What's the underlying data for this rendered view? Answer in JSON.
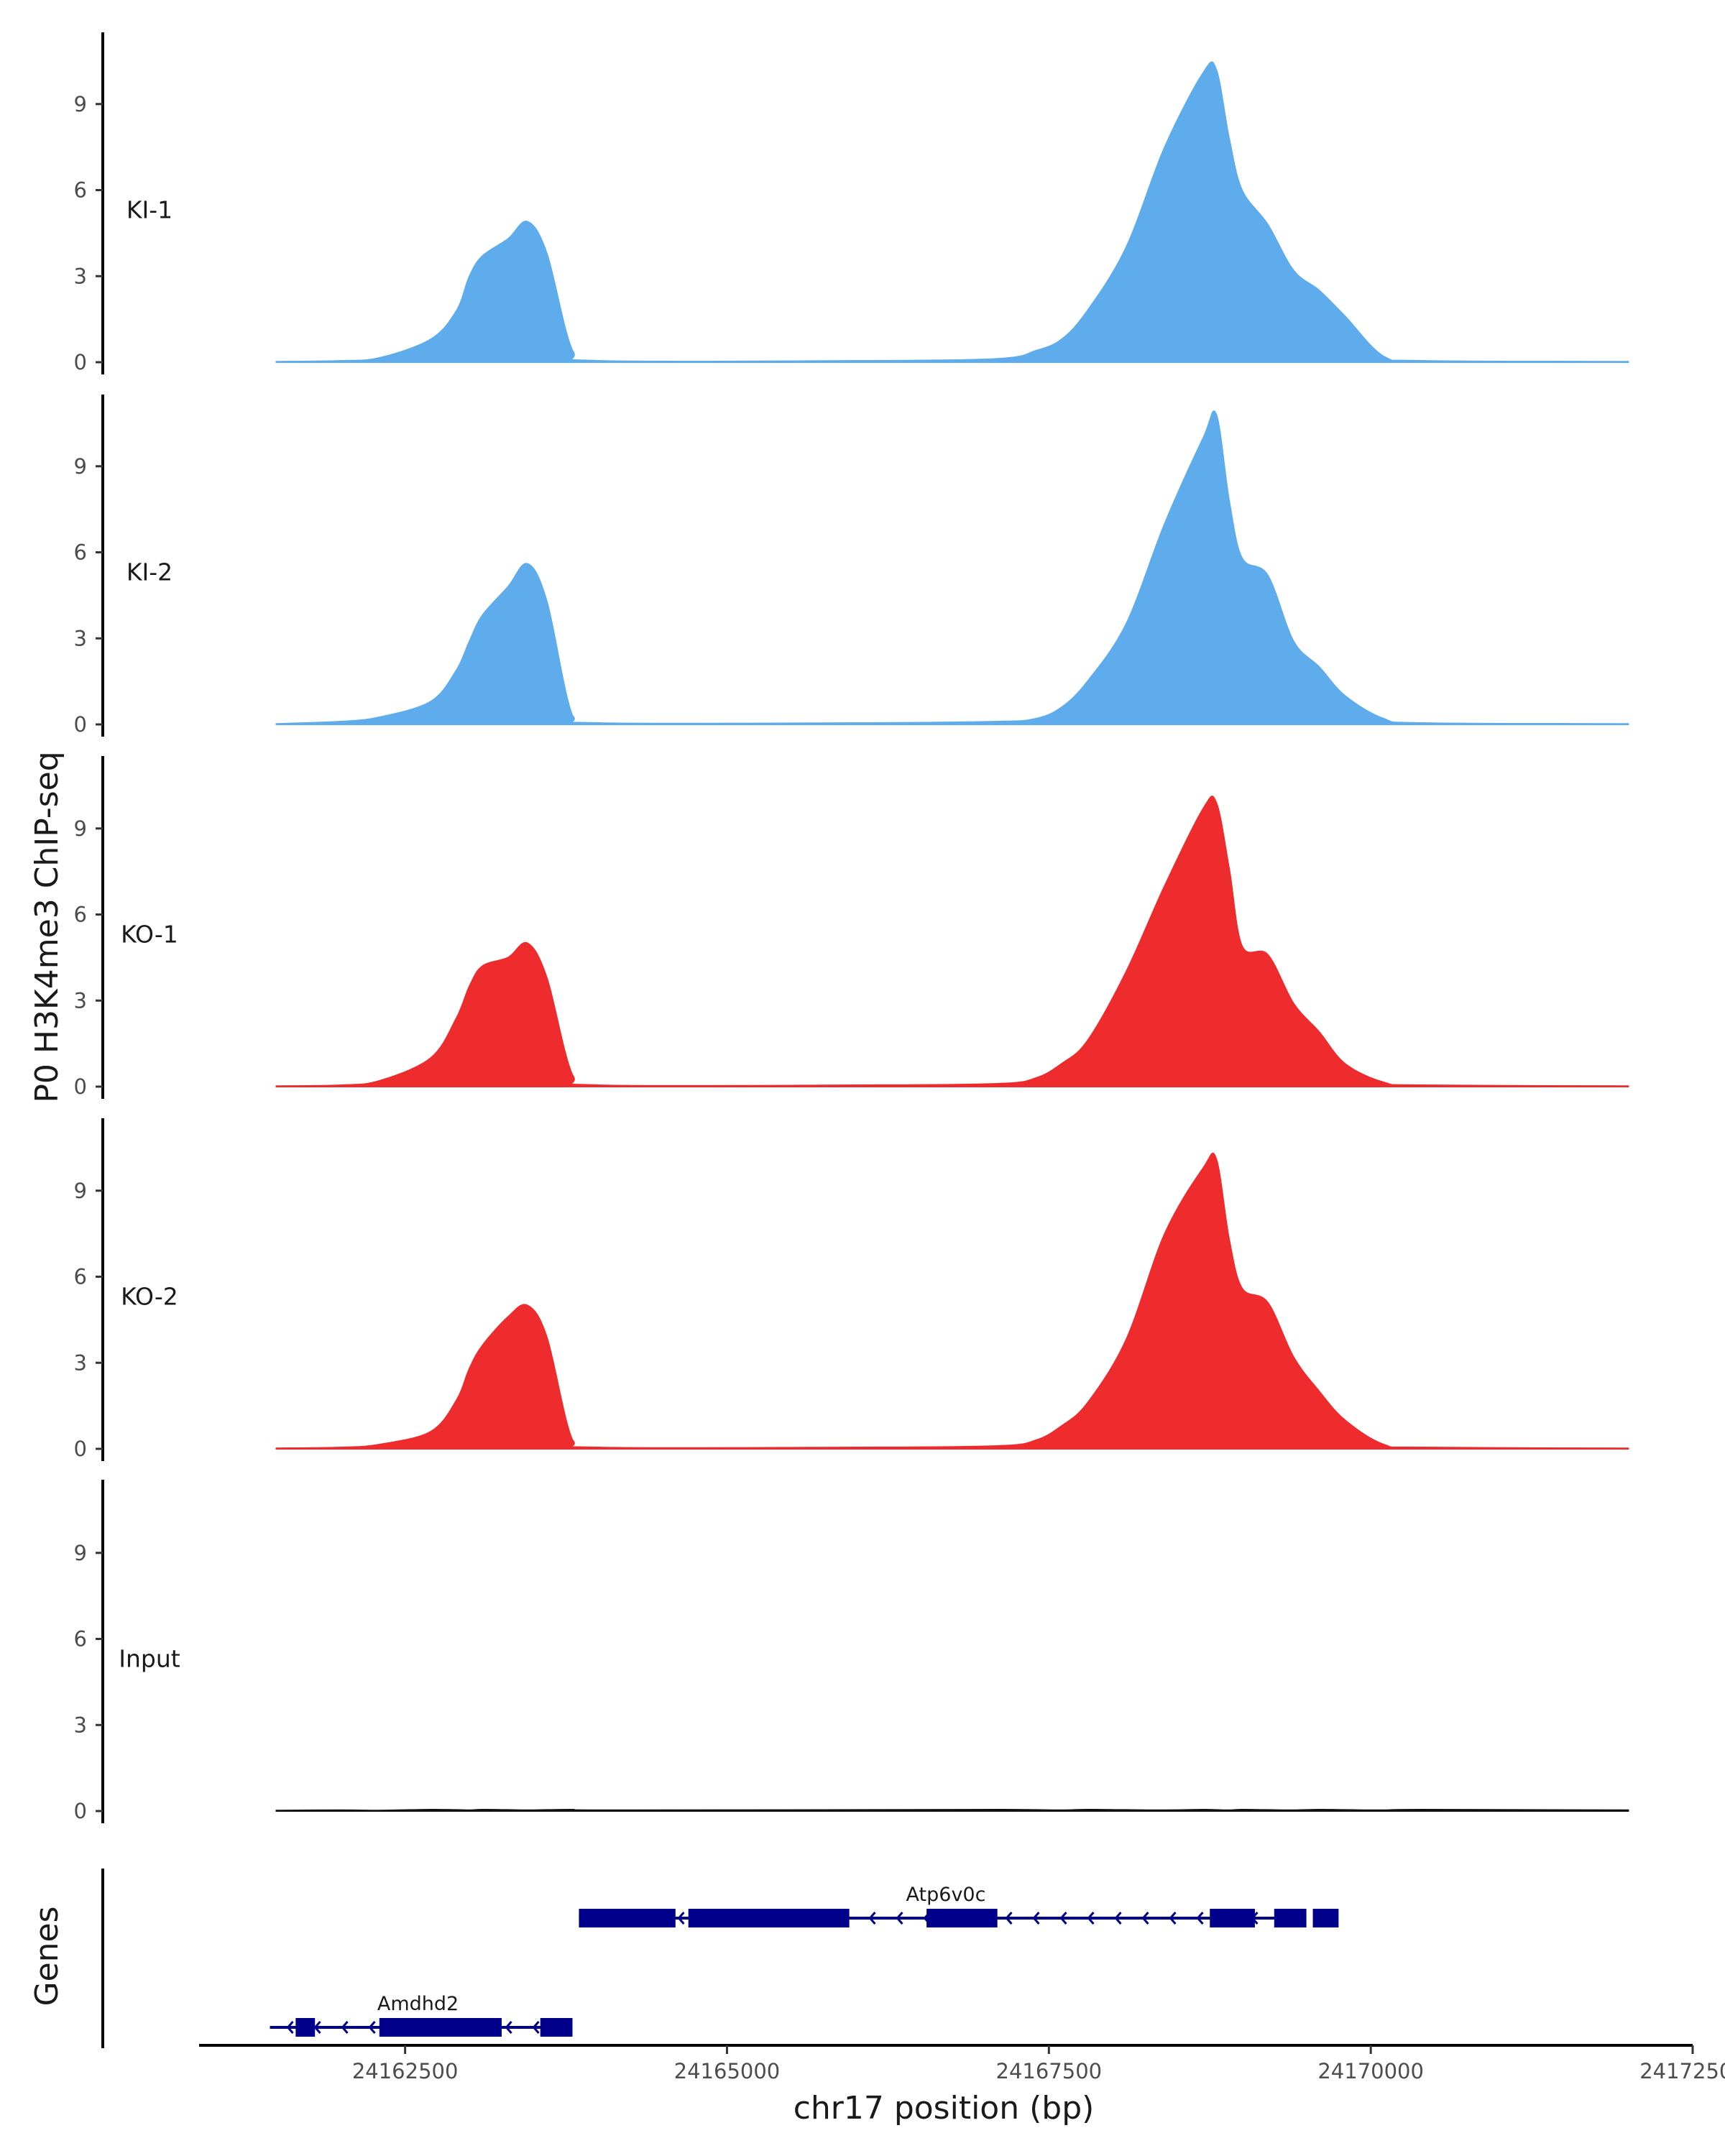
{
  "chart_data": {
    "type": "area",
    "ylabel": "P0 H3K4me3 ChIP-seq",
    "xlabel": "chr17 position (bp)",
    "genes_label": "Genes",
    "xlim": [
      24160900,
      24172500
    ],
    "xticks": [
      24162500,
      24165000,
      24167500,
      24170000,
      24172500
    ],
    "xtick_labels": [
      "24162500",
      "24165000",
      "24167500",
      "24170000",
      "24172500"
    ],
    "ylim": [
      0,
      11.5
    ],
    "yticks": [
      0,
      3,
      6,
      9
    ],
    "ytick_labels": [
      "0",
      "3",
      "6",
      "9"
    ],
    "x": [
      24161500,
      24162000,
      24162300,
      24162700,
      24162900,
      24163000,
      24163100,
      24163300,
      24163450,
      24163600,
      24163800,
      24164000,
      24166000,
      24167100,
      24167400,
      24167600,
      24167800,
      24168100,
      24168400,
      24168700,
      24168800,
      24168900,
      24169000,
      24169200,
      24169400,
      24169600,
      24169800,
      24170100,
      24170400,
      24172000
    ],
    "series": [
      {
        "name": "KI-1",
        "color": "#5FACEC",
        "values": [
          0.02,
          0.05,
          0.15,
          0.8,
          1.8,
          3.0,
          3.7,
          4.3,
          4.9,
          3.8,
          0.4,
          0.05,
          0.05,
          0.12,
          0.4,
          0.8,
          1.8,
          4.0,
          7.5,
          10.1,
          10.2,
          7.8,
          6.0,
          4.8,
          3.2,
          2.5,
          1.6,
          0.2,
          0.05,
          0.02
        ]
      },
      {
        "name": "KI-2",
        "color": "#5FACEC",
        "values": [
          0.02,
          0.1,
          0.25,
          0.8,
          1.9,
          2.9,
          3.8,
          4.8,
          5.6,
          4.3,
          0.3,
          0.05,
          0.05,
          0.1,
          0.2,
          0.6,
          1.5,
          3.5,
          7.0,
          10.0,
          10.8,
          7.8,
          5.8,
          5.2,
          2.9,
          2.0,
          1.0,
          0.2,
          0.05,
          0.02
        ]
      },
      {
        "name": "KO-1",
        "color": "#EE2B2D",
        "values": [
          0.02,
          0.05,
          0.2,
          1.0,
          2.4,
          3.5,
          4.2,
          4.5,
          5.0,
          3.8,
          0.4,
          0.05,
          0.05,
          0.1,
          0.3,
          0.8,
          1.6,
          4.0,
          7.0,
          9.7,
          9.9,
          7.6,
          4.9,
          4.6,
          2.9,
          1.9,
          0.8,
          0.15,
          0.05,
          0.02
        ]
      },
      {
        "name": "KO-2",
        "color": "#EE2B2D",
        "values": [
          0.02,
          0.05,
          0.15,
          0.6,
          1.7,
          2.8,
          3.6,
          4.6,
          5.0,
          3.9,
          0.3,
          0.05,
          0.05,
          0.1,
          0.3,
          0.8,
          1.6,
          3.8,
          7.5,
          9.8,
          10.1,
          7.3,
          5.6,
          5.1,
          3.2,
          2.0,
          1.0,
          0.15,
          0.05,
          0.02
        ]
      },
      {
        "name": "Input",
        "color": "#111111",
        "values": [
          0.02,
          0.03,
          0.02,
          0.05,
          0.04,
          0.03,
          0.05,
          0.04,
          0.03,
          0.04,
          0.05,
          0.03,
          0.04,
          0.05,
          0.04,
          0.03,
          0.05,
          0.04,
          0.03,
          0.05,
          0.04,
          0.03,
          0.05,
          0.04,
          0.03,
          0.05,
          0.04,
          0.03,
          0.05,
          0.03
        ]
      }
    ],
    "genes": [
      {
        "name": "Atp6v0c",
        "strand": "-",
        "start": 24163850,
        "end": 24169450,
        "exons": [
          [
            24163850,
            24164600
          ],
          [
            24164700,
            24165950
          ],
          [
            24166550,
            24167100
          ],
          [
            24168750,
            24169100
          ],
          [
            24169250,
            24169500
          ],
          [
            24169550,
            24169750
          ]
        ]
      },
      {
        "name": "Amdhd2",
        "strand": "-",
        "start": 24161450,
        "end": 24163800,
        "exons": [
          [
            24161650,
            24161800
          ],
          [
            24162300,
            24163250
          ],
          [
            24163550,
            24163800
          ]
        ]
      }
    ],
    "gene_color": "#00008B"
  }
}
